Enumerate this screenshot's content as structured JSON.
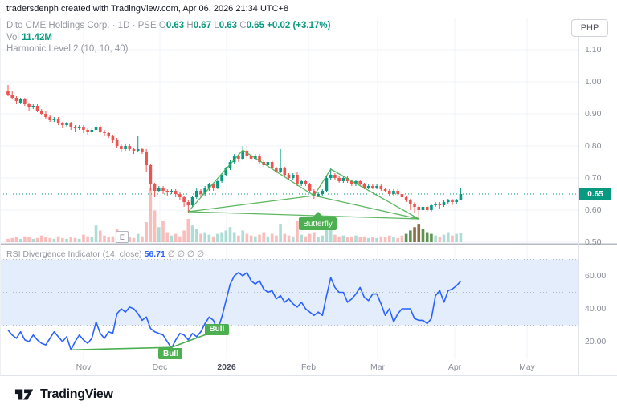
{
  "attribution": "tradersdenph created with TradingView.com, Apr 06, 2026 21:34 UTC+8",
  "symbol_info": {
    "title": "Dito CME Holdings Corp.",
    "interval": "1D",
    "exchange": "PSE",
    "ohlc": [
      {
        "k": "O",
        "v": "0.63"
      },
      {
        "k": "H",
        "v": "0.67"
      },
      {
        "k": "L",
        "v": "0.63"
      },
      {
        "k": "C",
        "v": "0.65"
      }
    ],
    "change": "+0.02 (+3.17%)",
    "vol_label": "Vol",
    "vol_value": "11.42M",
    "indicator_line": "Harmonic Level 2 (10, 10, 40)"
  },
  "currency_button": "PHP",
  "price_axis": {
    "ticks": [
      "1.10",
      "1.00",
      "0.90",
      "0.80",
      "0.70",
      "0.60",
      "0.50"
    ],
    "current": "0.65"
  },
  "rsi_legend": {
    "label": "RSI Divergence Indicator (14, close)",
    "value": "56.71",
    "zeros": "∅ ∅ ∅ ∅"
  },
  "time_axis": {
    "labels": [
      "Nov",
      "Dec",
      "2026",
      "Feb",
      "Mar",
      "Apr",
      "May"
    ],
    "year_index": 2
  },
  "earnings_marker": "E",
  "footer": {
    "logo_text": "TradingView"
  },
  "colors": {
    "up": "#089981",
    "down": "#ef5350",
    "vol_up": "rgba(8,153,129,0.33)",
    "vol_down": "rgba(239,83,80,0.38)",
    "vol_olive": "#5f9450",
    "vol_brown": "#8c6d46",
    "pattern_green": "#4caf50",
    "rsi_blue": "#2962ff",
    "rsi_band": "#e3edfb",
    "grid": "#f0f3fa",
    "frame": "#e0e3eb",
    "pane_sep": "#b7bac3",
    "badge_green": "#4caf50",
    "price_line": "#089981"
  },
  "chart_data": [
    {
      "type": "candlestick",
      "title": "Dito CME Holdings Corp. · 1D · PSE",
      "ylabel": "PHP",
      "ylim": [
        0.5,
        1.15
      ],
      "price_gridlines": [
        1.1,
        1.0,
        0.9,
        0.8,
        0.7,
        0.6,
        0.5
      ],
      "current_price": 0.65,
      "candles_ohlc": [
        [
          0.97,
          0.99,
          0.955,
          0.96
        ],
        [
          0.96,
          0.97,
          0.945,
          0.95
        ],
        [
          0.95,
          0.955,
          0.93,
          0.94
        ],
        [
          0.935,
          0.95,
          0.93,
          0.945
        ],
        [
          0.945,
          0.95,
          0.925,
          0.93
        ],
        [
          0.93,
          0.935,
          0.91,
          0.92
        ],
        [
          0.92,
          0.93,
          0.915,
          0.925
        ],
        [
          0.925,
          0.93,
          0.905,
          0.91
        ],
        [
          0.91,
          0.915,
          0.895,
          0.9
        ],
        [
          0.9,
          0.91,
          0.885,
          0.89
        ],
        [
          0.89,
          0.895,
          0.875,
          0.88
        ],
        [
          0.88,
          0.89,
          0.875,
          0.885
        ],
        [
          0.885,
          0.89,
          0.865,
          0.87
        ],
        [
          0.87,
          0.875,
          0.855,
          0.865
        ],
        [
          0.865,
          0.875,
          0.86,
          0.87
        ],
        [
          0.87,
          0.875,
          0.85,
          0.86
        ],
        [
          0.86,
          0.865,
          0.845,
          0.855
        ],
        [
          0.855,
          0.865,
          0.85,
          0.86
        ],
        [
          0.86,
          0.865,
          0.84,
          0.85
        ],
        [
          0.85,
          0.855,
          0.835,
          0.845
        ],
        [
          0.845,
          0.855,
          0.84,
          0.85
        ],
        [
          0.85,
          0.88,
          0.845,
          0.86
        ],
        [
          0.86,
          0.865,
          0.84,
          0.845
        ],
        [
          0.845,
          0.85,
          0.83,
          0.84
        ],
        [
          0.84,
          0.845,
          0.825,
          0.83
        ],
        [
          0.83,
          0.835,
          0.81,
          0.82
        ],
        [
          0.82,
          0.825,
          0.795,
          0.8
        ],
        [
          0.8,
          0.805,
          0.78,
          0.79
        ],
        [
          0.79,
          0.805,
          0.785,
          0.8
        ],
        [
          0.8,
          0.805,
          0.785,
          0.79
        ],
        [
          0.79,
          0.795,
          0.775,
          0.785
        ],
        [
          0.785,
          0.83,
          0.78,
          0.79
        ],
        [
          0.79,
          0.795,
          0.775,
          0.78
        ],
        [
          0.78,
          0.79,
          0.72,
          0.74
        ],
        [
          0.74,
          0.745,
          0.66,
          0.68
        ],
        [
          0.68,
          0.685,
          0.64,
          0.66
        ],
        [
          0.66,
          0.675,
          0.655,
          0.67
        ],
        [
          0.67,
          0.675,
          0.65,
          0.66
        ],
        [
          0.66,
          0.665,
          0.645,
          0.655
        ],
        [
          0.655,
          0.665,
          0.65,
          0.66
        ],
        [
          0.66,
          0.665,
          0.64,
          0.65
        ],
        [
          0.65,
          0.655,
          0.63,
          0.64
        ],
        [
          0.64,
          0.645,
          0.61,
          0.625
        ],
        [
          0.625,
          0.63,
          0.59,
          0.615
        ],
        [
          0.615,
          0.645,
          0.61,
          0.64
        ],
        [
          0.64,
          0.67,
          0.635,
          0.66
        ],
        [
          0.66,
          0.665,
          0.64,
          0.65
        ],
        [
          0.65,
          0.675,
          0.645,
          0.67
        ],
        [
          0.67,
          0.685,
          0.66,
          0.68
        ],
        [
          0.68,
          0.685,
          0.66,
          0.67
        ],
        [
          0.67,
          0.695,
          0.665,
          0.69
        ],
        [
          0.69,
          0.715,
          0.685,
          0.71
        ],
        [
          0.71,
          0.735,
          0.705,
          0.73
        ],
        [
          0.73,
          0.755,
          0.725,
          0.75
        ],
        [
          0.75,
          0.775,
          0.745,
          0.77
        ],
        [
          0.77,
          0.775,
          0.75,
          0.76
        ],
        [
          0.76,
          0.8,
          0.755,
          0.785
        ],
        [
          0.785,
          0.8,
          0.76,
          0.77
        ],
        [
          0.77,
          0.775,
          0.75,
          0.76
        ],
        [
          0.76,
          0.775,
          0.755,
          0.77
        ],
        [
          0.77,
          0.775,
          0.745,
          0.75
        ],
        [
          0.75,
          0.755,
          0.735,
          0.74
        ],
        [
          0.74,
          0.755,
          0.735,
          0.75
        ],
        [
          0.75,
          0.755,
          0.725,
          0.73
        ],
        [
          0.73,
          0.735,
          0.715,
          0.72
        ],
        [
          0.72,
          0.79,
          0.715,
          0.73
        ],
        [
          0.73,
          0.735,
          0.705,
          0.71
        ],
        [
          0.71,
          0.715,
          0.695,
          0.7
        ],
        [
          0.7,
          0.715,
          0.695,
          0.71
        ],
        [
          0.71,
          0.72,
          0.675,
          0.68
        ],
        [
          0.68,
          0.695,
          0.675,
          0.69
        ],
        [
          0.69,
          0.695,
          0.675,
          0.68
        ],
        [
          0.68,
          0.685,
          0.655,
          0.66
        ],
        [
          0.66,
          0.665,
          0.635,
          0.645
        ],
        [
          0.645,
          0.655,
          0.64,
          0.65
        ],
        [
          0.65,
          0.665,
          0.645,
          0.66
        ],
        [
          0.66,
          0.705,
          0.655,
          0.7
        ],
        [
          0.7,
          0.73,
          0.695,
          0.71
        ],
        [
          0.71,
          0.715,
          0.695,
          0.7
        ],
        [
          0.7,
          0.705,
          0.685,
          0.69
        ],
        [
          0.69,
          0.705,
          0.685,
          0.7
        ],
        [
          0.7,
          0.705,
          0.685,
          0.69
        ],
        [
          0.69,
          0.695,
          0.675,
          0.68
        ],
        [
          0.68,
          0.695,
          0.675,
          0.69
        ],
        [
          0.69,
          0.695,
          0.675,
          0.68
        ],
        [
          0.68,
          0.685,
          0.665,
          0.67
        ],
        [
          0.67,
          0.68,
          0.665,
          0.675
        ],
        [
          0.675,
          0.68,
          0.665,
          0.67
        ],
        [
          0.67,
          0.68,
          0.665,
          0.675
        ],
        [
          0.675,
          0.68,
          0.66,
          0.665
        ],
        [
          0.665,
          0.67,
          0.655,
          0.66
        ],
        [
          0.66,
          0.665,
          0.645,
          0.65
        ],
        [
          0.65,
          0.665,
          0.645,
          0.66
        ],
        [
          0.66,
          0.665,
          0.645,
          0.65
        ],
        [
          0.65,
          0.655,
          0.635,
          0.64
        ],
        [
          0.64,
          0.645,
          0.625,
          0.63
        ],
        [
          0.63,
          0.635,
          0.6,
          0.62
        ],
        [
          0.62,
          0.625,
          0.59,
          0.61
        ],
        [
          0.61,
          0.615,
          0.575,
          0.6
        ],
        [
          0.6,
          0.615,
          0.595,
          0.61
        ],
        [
          0.61,
          0.615,
          0.595,
          0.6
        ],
        [
          0.6,
          0.62,
          0.595,
          0.615
        ],
        [
          0.615,
          0.625,
          0.61,
          0.62
        ],
        [
          0.62,
          0.625,
          0.605,
          0.615
        ],
        [
          0.615,
          0.63,
          0.61,
          0.625
        ],
        [
          0.625,
          0.635,
          0.62,
          0.63
        ],
        [
          0.63,
          0.635,
          0.615,
          0.625
        ],
        [
          0.625,
          0.635,
          0.62,
          0.63
        ],
        [
          0.63,
          0.67,
          0.63,
          0.65
        ]
      ],
      "volume_m": [
        4,
        5,
        6,
        4,
        7,
        6,
        4,
        5,
        8,
        6,
        5,
        4,
        7,
        5,
        4,
        6,
        5,
        4,
        9,
        7,
        6,
        20,
        14,
        8,
        6,
        7,
        16,
        12,
        8,
        6,
        5,
        10,
        7,
        24,
        65,
        38,
        18,
        25,
        12,
        8,
        10,
        7,
        14,
        28,
        20,
        16,
        10,
        12,
        9,
        7,
        10,
        12,
        14,
        18,
        12,
        8,
        14,
        10,
        8,
        7,
        9,
        12,
        7,
        10,
        8,
        22,
        10,
        8,
        7,
        26,
        9,
        7,
        10,
        12,
        6,
        8,
        24,
        16,
        9,
        7,
        8,
        6,
        7,
        8,
        6,
        7,
        5,
        6,
        5,
        7,
        6,
        8,
        6,
        5,
        8,
        10,
        14,
        18,
        22,
        16,
        12,
        10,
        8,
        6,
        9,
        12,
        8,
        10,
        11.42
      ],
      "volume_olive_idx": [
        95,
        96,
        99,
        100,
        101
      ],
      "volume_brown_idx": [
        97,
        98
      ],
      "earnings_marker_index": 27,
      "pattern": {
        "name": "Butterfly",
        "points": {
          "X": {
            "i": 43,
            "p": 0.595
          },
          "A": {
            "i": 56,
            "p": 0.787
          },
          "B": {
            "i": 73,
            "p": 0.645
          },
          "C": {
            "i": 77,
            "p": 0.7275
          },
          "D": {
            "i": 98,
            "p": 0.5725
          }
        },
        "edges": [
          [
            "X",
            "A"
          ],
          [
            "A",
            "B"
          ],
          [
            "X",
            "B"
          ],
          [
            "B",
            "C"
          ],
          [
            "C",
            "D"
          ],
          [
            "B",
            "D"
          ],
          [
            "X",
            "D"
          ]
        ],
        "label_anchor": {
          "i": 74,
          "p": 0.585
        }
      }
    },
    {
      "type": "line",
      "name": "RSI Divergence Indicator (14, close)",
      "last_value": 56.71,
      "band": [
        30,
        70
      ],
      "gridlines": [
        30,
        50,
        70
      ],
      "axis_ticks": [
        {
          "v": 60,
          "label": "60.00"
        },
        {
          "v": 40,
          "label": "40.00"
        },
        {
          "v": 20,
          "label": "20.00"
        }
      ],
      "values": [
        27,
        24,
        22,
        26,
        21,
        20,
        24,
        21,
        19,
        18,
        22,
        26,
        23,
        20,
        23,
        15,
        20,
        24,
        21,
        19,
        22,
        32,
        25,
        22,
        26,
        25,
        37,
        40,
        38,
        41,
        40,
        37,
        33,
        35,
        28,
        26,
        25,
        24,
        20,
        16,
        21,
        25,
        24,
        21,
        25,
        23,
        26,
        31,
        35,
        33,
        27,
        35,
        45,
        55,
        60,
        62,
        60,
        62,
        57,
        55,
        57,
        52,
        50,
        51,
        46,
        48,
        44,
        46,
        43,
        41,
        44,
        40,
        38,
        36,
        38,
        36,
        48,
        59,
        53,
        50,
        50,
        44,
        46,
        49,
        53,
        47,
        45,
        49,
        49,
        43,
        36,
        40,
        32,
        37,
        40,
        40,
        40,
        34,
        33,
        33,
        31,
        34,
        48,
        51,
        44,
        51,
        52,
        54,
        56.71
      ],
      "divergence_lines": [
        {
          "label": "Bull",
          "from_i": 15,
          "from_v": 15,
          "to_i": 39,
          "to_v": 16.5,
          "badge": "below"
        },
        {
          "label": "Bull",
          "from_i": 39,
          "from_v": 16.5,
          "to_i": 50,
          "to_v": 27,
          "badge": "center"
        }
      ]
    }
  ]
}
